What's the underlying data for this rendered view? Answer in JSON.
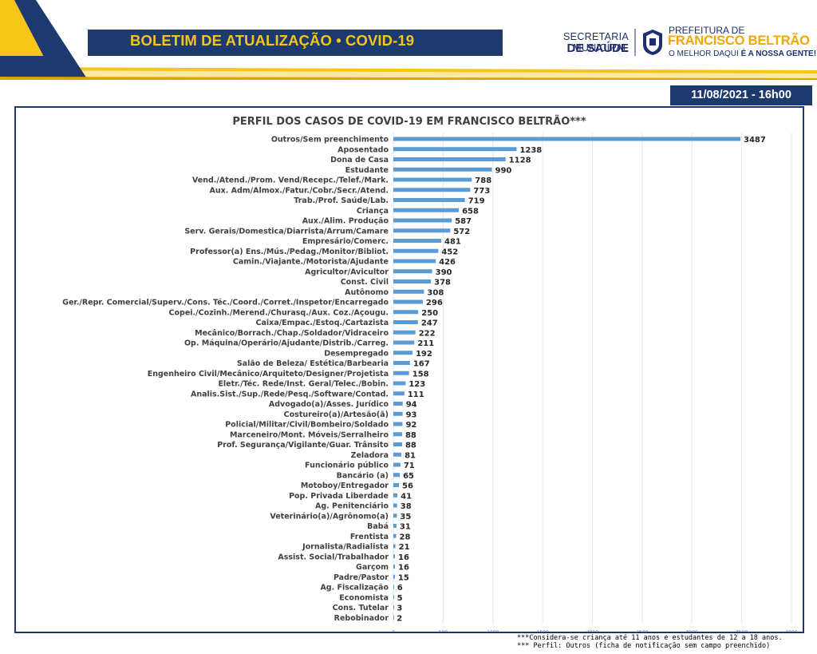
{
  "header": {
    "title": "BOLETIM DE ATUALIZAÇÃO • COVID-19",
    "secretaria_line1": "SECRETARIA MUNICIPAL",
    "secretaria_line2": "DE SAÚDE",
    "prefeitura_line1": "PREFEITURA DE",
    "prefeitura_line2": "FRANCISCO BELTRÃO",
    "prefeitura_slogan_a": "O MELHOR DAQUI ",
    "prefeitura_slogan_b": "É A NOSSA GENTE!",
    "date": "11/08/2021 - 16h00"
  },
  "colors": {
    "navy": "#1c3a6e",
    "yellow": "#f5c518",
    "bar": "#5b9bd5"
  },
  "notes": {
    "line1": "***Considera-se criança até 11 anos e estudantes de 12 a 18 anos.",
    "line2": "*** Perfil: Outros (ficha de notificação sem campo preenchido)"
  },
  "chart_data": {
    "type": "bar",
    "orientation": "horizontal",
    "title": "PERFIL DOS CASOS DE COVID-19 EM FRANCISCO BELTRÃO***",
    "xlim": [
      0,
      4000
    ],
    "xticks": [
      "0",
      "500",
      "1000",
      "1500",
      "2000",
      "2500",
      "3000",
      "3500",
      "4000"
    ],
    "grid": true,
    "categories": [
      "Outros/Sem preenchimento",
      "Aposentado",
      "Dona de Casa",
      "Estudante",
      "Vend./Atend./Prom. Vend/Recepc./Telef./Mark.",
      "Aux. Adm/Almox./Fatur./Cobr./Secr./Atend.",
      "Trab./Prof. Saúde/Lab.",
      "Criança",
      "Aux./Alim. Produção",
      "Serv. Gerais/Domestica/Diarrista/Arrum/Camare",
      "Empresário/Comerc.",
      "Professor(a) Ens./Mús./Pedag./Monitor/Bibliot.",
      "Camin./Viajante./Motorista/Ajudante",
      "Agricultor/Avicultor",
      "Const. Civil",
      "Autônomo",
      "Ger./Repr. Comercial/Superv./Cons. Téc./Coord./Corret./Inspetor/Encarregado",
      "Copei./Cozinh./Merend./Churasq./Aux. Coz./Açougu.",
      "Caixa/Empac./Estoq./Cartazista",
      "Mecânico/Borrach./Chap./Soldador/Vidraceiro",
      "Op. Máquina/Operário/Ajudante/Distrib./Carreg.",
      "Desempregado",
      "Salão de Beleza/ Estética/Barbearia",
      "Engenheiro Civil/Mecânico/Arquiteto/Designer/Projetista",
      "Eletr./Téc. Rede/Inst. Geral/Telec./Bobin.",
      "Analis.Sist./Sup./Rede/Pesq./Software/Contad.",
      "Advogado(a)/Asses. Jurídico",
      "Costureiro(a)/Artesão(ã)",
      "Policial/Militar/Civil/Bombeiro/Soldado",
      "Marceneiro/Mont. Móveis/Serralheiro",
      "Prof. Segurança/Vigilante/Guar. Trânsito",
      "Zeladora",
      "Funcionário público",
      "Bancário (a)",
      "Motoboy/Entregador",
      "Pop. Privada Liberdade",
      "Ag. Penitenciário",
      "Veterinário(a)/Agrônomo(a)",
      "Babá",
      "Frentista",
      "Jornalista/Radialista",
      "Assist. Social/Trabalhador",
      "Garçom",
      "Padre/Pastor",
      "Ag. Fiscalização",
      "Economista",
      "Cons. Tutelar",
      "Rebobinador"
    ],
    "values": [
      3487,
      1238,
      1128,
      990,
      788,
      773,
      719,
      658,
      587,
      572,
      481,
      452,
      426,
      390,
      378,
      308,
      296,
      250,
      247,
      222,
      211,
      192,
      167,
      158,
      123,
      111,
      94,
      93,
      92,
      88,
      88,
      81,
      71,
      65,
      56,
      41,
      38,
      35,
      31,
      28,
      21,
      16,
      16,
      15,
      6,
      5,
      3,
      2
    ]
  }
}
